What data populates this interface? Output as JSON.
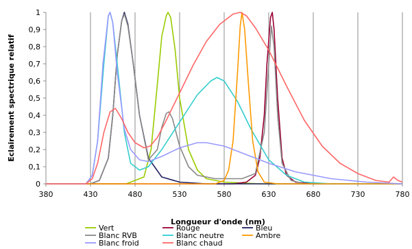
{
  "chart_data": {
    "type": "line",
    "title": "",
    "xlabel": "Longueur d'onde (nm)",
    "ylabel": "Eclairement spectrique relatif",
    "xlim": [
      380,
      780
    ],
    "ylim": [
      0,
      1
    ],
    "x_ticks": [
      380,
      430,
      480,
      530,
      580,
      630,
      680,
      730,
      780
    ],
    "y_ticks": [
      0,
      0.1,
      0.2,
      0.3,
      0.4,
      0.5,
      0.6,
      0.7,
      0.8,
      0.9,
      1
    ],
    "y_tick_labels": [
      "0",
      "0,1",
      "0,2",
      "0,3",
      "0,4",
      "0,5",
      "0,6",
      "0,7",
      "0,8",
      "0,9",
      "1"
    ],
    "grid": "vertical",
    "legend_position": "bottom",
    "series": [
      {
        "name": "Vert",
        "color": "#99cc00",
        "x": [
          380,
          470,
          490,
          498,
          505,
          510,
          515,
          517,
          520,
          525,
          530,
          540,
          550,
          560,
          580,
          620,
          780
        ],
        "y": [
          0,
          0,
          0.04,
          0.2,
          0.58,
          0.86,
          0.98,
          1,
          0.97,
          0.78,
          0.5,
          0.2,
          0.08,
          0.03,
          0.01,
          0,
          0
        ]
      },
      {
        "name": "Rouge",
        "color": "#990033",
        "x": [
          380,
          590,
          605,
          615,
          620,
          625,
          628,
          632,
          634,
          636,
          640,
          645,
          650,
          660,
          680,
          780
        ],
        "y": [
          0,
          0,
          0.01,
          0.05,
          0.15,
          0.4,
          0.7,
          0.97,
          1,
          0.9,
          0.5,
          0.15,
          0.05,
          0.01,
          0,
          0
        ]
      },
      {
        "name": "Bleu",
        "color": "#1f1f5f",
        "x": [
          380,
          430,
          440,
          450,
          455,
          460,
          465,
          468,
          472,
          478,
          485,
          495,
          510,
          530,
          560,
          600,
          780
        ],
        "y": [
          0,
          0,
          0.02,
          0.15,
          0.4,
          0.75,
          0.95,
          1,
          0.93,
          0.7,
          0.4,
          0.15,
          0.04,
          0.01,
          0,
          0,
          0
        ]
      },
      {
        "name": "Blanc RVB",
        "color": "#888888",
        "x": [
          380,
          430,
          440,
          450,
          455,
          460,
          465,
          468,
          472,
          478,
          485,
          495,
          505,
          510,
          515,
          518,
          522,
          530,
          540,
          550,
          570,
          600,
          615,
          625,
          630,
          633,
          636,
          640,
          645,
          655,
          670,
          780
        ],
        "y": [
          0,
          0,
          0.02,
          0.15,
          0.4,
          0.75,
          0.95,
          0.99,
          0.92,
          0.7,
          0.4,
          0.14,
          0.2,
          0.33,
          0.41,
          0.42,
          0.38,
          0.22,
          0.1,
          0.05,
          0.03,
          0.03,
          0.06,
          0.3,
          0.7,
          0.92,
          0.8,
          0.4,
          0.12,
          0.02,
          0,
          0
        ]
      },
      {
        "name": "Blanc neutre",
        "color": "#33cccc",
        "x": [
          380,
          425,
          432,
          438,
          445,
          450,
          452,
          455,
          460,
          468,
          475,
          485,
          495,
          510,
          530,
          550,
          565,
          572,
          580,
          595,
          610,
          630,
          650,
          670,
          700,
          730,
          780
        ],
        "y": [
          0,
          0,
          0.05,
          0.25,
          0.7,
          0.98,
          1,
          0.94,
          0.7,
          0.3,
          0.12,
          0.08,
          0.1,
          0.2,
          0.36,
          0.52,
          0.6,
          0.62,
          0.6,
          0.48,
          0.32,
          0.14,
          0.05,
          0.01,
          0,
          0,
          0
        ]
      },
      {
        "name": "Ambre",
        "color": "#ff9900",
        "x": [
          380,
          570,
          580,
          585,
          590,
          595,
          598,
          600,
          603,
          607,
          612,
          618,
          625,
          640,
          780
        ],
        "y": [
          0,
          0,
          0.02,
          0.08,
          0.25,
          0.65,
          0.92,
          1,
          0.9,
          0.6,
          0.25,
          0.07,
          0.01,
          0,
          0
        ]
      },
      {
        "name": "Blanc froid",
        "color": "#9999ff",
        "x": [
          380,
          425,
          432,
          438,
          444,
          450,
          452,
          455,
          460,
          468,
          475,
          485,
          495,
          510,
          530,
          550,
          560,
          580,
          600,
          630,
          660,
          700,
          740,
          780
        ],
        "y": [
          0,
          0,
          0.05,
          0.25,
          0.7,
          0.98,
          1,
          0.94,
          0.65,
          0.32,
          0.2,
          0.14,
          0.13,
          0.16,
          0.21,
          0.24,
          0.24,
          0.22,
          0.18,
          0.12,
          0.07,
          0.03,
          0.01,
          0
        ]
      },
      {
        "name": "Blanc chaud",
        "color": "#ff6666",
        "x": [
          380,
          425,
          432,
          438,
          445,
          452,
          458,
          465,
          472,
          480,
          490,
          497,
          505,
          515,
          530,
          545,
          560,
          575,
          590,
          598,
          605,
          615,
          630,
          650,
          670,
          690,
          710,
          730,
          750,
          765,
          770,
          775,
          780
        ],
        "y": [
          0,
          0,
          0.03,
          0.12,
          0.3,
          0.42,
          0.44,
          0.38,
          0.3,
          0.24,
          0.21,
          0.22,
          0.27,
          0.37,
          0.53,
          0.69,
          0.83,
          0.93,
          0.99,
          1,
          0.98,
          0.91,
          0.78,
          0.57,
          0.37,
          0.22,
          0.12,
          0.06,
          0.02,
          0.01,
          0.04,
          0.02,
          0.01
        ]
      }
    ]
  }
}
